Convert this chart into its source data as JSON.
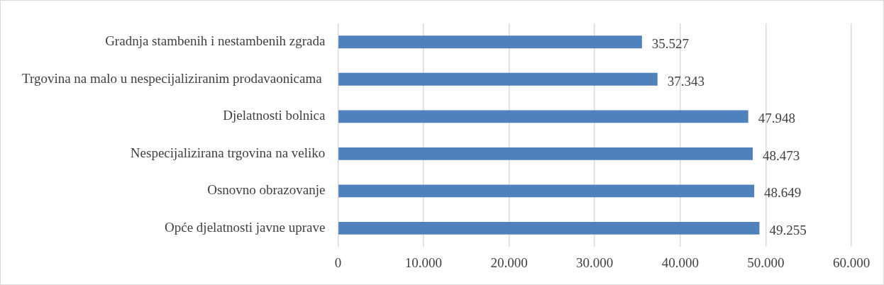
{
  "chart_data": {
    "type": "bar",
    "orientation": "horizontal",
    "categories": [
      "Gradnja stambenih i nestambenih zgrada",
      "Trgovina na malo u nespecijaliziranim prodavaonicama ",
      "Djelatnosti bolnica",
      "Nespecijalizirana trgovina na veliko",
      "Osnovno obrazovanje",
      "Opće djelatnosti javne uprave"
    ],
    "values": [
      35527,
      37343,
      47948,
      48473,
      48649,
      49255
    ],
    "value_labels": [
      "35.527",
      "37.343",
      "47.948",
      "48.473",
      "48.649",
      "49.255"
    ],
    "color": "#4f81bd",
    "xlim": [
      0,
      60000
    ],
    "xticks": [
      0,
      {
        "value": 10000,
        "label": "10.000"
      },
      {
        "value": 20000,
        "label": "20.000"
      },
      {
        "value": 30000,
        "label": "30.000"
      },
      {
        "value": 40000,
        "label": "40.000"
      },
      {
        "value": 50000,
        "label": "50.000"
      },
      {
        "value": 60000,
        "label": "60.000"
      }
    ],
    "grid": "x",
    "legend": false
  }
}
